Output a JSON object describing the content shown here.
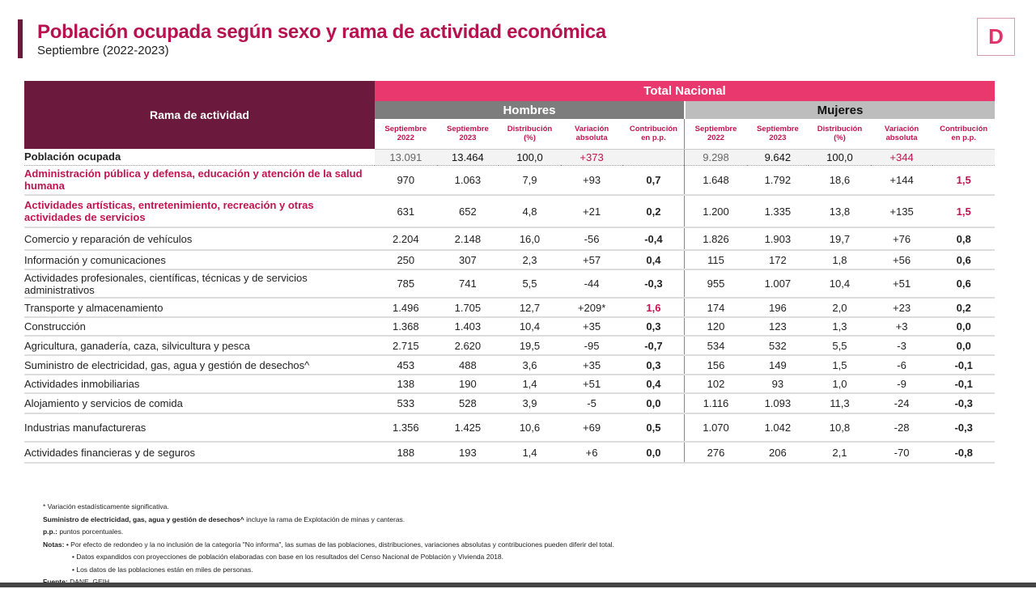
{
  "header": {
    "title": "Población ocupada según sexo y rama de actividad económica",
    "subtitle": "Septiembre (2022-2023)",
    "logo_letter": "D"
  },
  "table": {
    "rama_header": "Rama de actividad",
    "total_header": "Total Nacional",
    "hombres": "Hombres",
    "mujeres": "Mujeres",
    "columns": [
      "Septiembre 2022",
      "Septiembre 2023",
      "Distribución (%)",
      "Variación absoluta",
      "Contribución en p.p."
    ],
    "total_row": {
      "label": "Población ocupada",
      "hombres": [
        "13.091",
        "13.464",
        "100,0",
        "+373",
        ""
      ],
      "mujeres": [
        "9.298",
        "9.642",
        "100,0",
        "+344",
        ""
      ]
    },
    "rows": [
      {
        "label": "Administración pública y defensa, educación y atención de la salud humana",
        "highlight": true,
        "hombres": [
          "970",
          "1.063",
          "7,9",
          "+93",
          "0,7"
        ],
        "mujeres": [
          "1.648",
          "1.792",
          "18,6",
          "+144",
          "1,5"
        ],
        "pink_h": false,
        "pink_m": true
      },
      {
        "label": "Actividades artísticas, entretenimiento, recreación y otras actividades de servicios",
        "highlight": true,
        "hombres": [
          "631",
          "652",
          "4,8",
          "+21",
          "0,2"
        ],
        "mujeres": [
          "1.200",
          "1.335",
          "13,8",
          "+135",
          "1,5"
        ],
        "pink_h": false,
        "pink_m": true
      },
      {
        "label": "Comercio y reparación de vehículos",
        "hombres": [
          "2.204",
          "2.148",
          "16,0",
          "-56",
          "-0,4"
        ],
        "mujeres": [
          "1.826",
          "1.903",
          "19,7",
          "+76",
          "0,8"
        ]
      },
      {
        "label": "Información y comunicaciones",
        "hombres": [
          "250",
          "307",
          "2,3",
          "+57",
          "0,4"
        ],
        "mujeres": [
          "115",
          "172",
          "1,8",
          "+56",
          "0,6"
        ]
      },
      {
        "label": "Actividades profesionales, científicas, técnicas y de servicios administrativos",
        "hombres": [
          "785",
          "741",
          "5,5",
          "-44",
          "-0,3"
        ],
        "mujeres": [
          "955",
          "1.007",
          "10,4",
          "+51",
          "0,6"
        ]
      },
      {
        "label": "Transporte y almacenamiento",
        "hombres": [
          "1.496",
          "1.705",
          "12,7",
          "+209*",
          "1,6"
        ],
        "mujeres": [
          "174",
          "196",
          "2,0",
          "+23",
          "0,2"
        ],
        "pink_h": true
      },
      {
        "label": "Construcción",
        "hombres": [
          "1.368",
          "1.403",
          "10,4",
          "+35",
          "0,3"
        ],
        "mujeres": [
          "120",
          "123",
          "1,3",
          "+3",
          "0,0"
        ]
      },
      {
        "label": "Agricultura, ganadería, caza, silvicultura y pesca",
        "hombres": [
          "2.715",
          "2.620",
          "19,5",
          "-95",
          "-0,7"
        ],
        "mujeres": [
          "534",
          "532",
          "5,5",
          "-3",
          "0,0"
        ]
      },
      {
        "label": "Suministro de electricidad, gas, agua y gestión de desechos^",
        "hombres": [
          "453",
          "488",
          "3,6",
          "+35",
          "0,3"
        ],
        "mujeres": [
          "156",
          "149",
          "1,5",
          "-6",
          "-0,1"
        ]
      },
      {
        "label": "Actividades inmobiliarias",
        "hombres": [
          "138",
          "190",
          "1,4",
          "+51",
          "0,4"
        ],
        "mujeres": [
          "102",
          "93",
          "1,0",
          "-9",
          "-0,1"
        ]
      },
      {
        "label": "Alojamiento y servicios de comida",
        "hombres": [
          "533",
          "528",
          "3,9",
          "-5",
          "0,0"
        ],
        "mujeres": [
          "1.116",
          "1.093",
          "11,3",
          "-24",
          "-0,3"
        ]
      },
      {
        "label": "Industrias manufactureras",
        "hombres": [
          "1.356",
          "1.425",
          "10,6",
          "+69",
          "0,5"
        ],
        "mujeres": [
          "1.070",
          "1.042",
          "10,8",
          "-28",
          "-0,3"
        ]
      },
      {
        "label": "Actividades financieras y de seguros",
        "hombres": [
          "188",
          "193",
          "1,4",
          "+6",
          "0,0"
        ],
        "mujeres": [
          "276",
          "206",
          "2,1",
          "-70",
          "-0,8"
        ]
      }
    ]
  },
  "notes": {
    "significance": "* Variación estadísticamente significativa.",
    "suministro_bold": "Suministro de electricidad, gas, agua y gestión de desechos^",
    "suministro_text": " incluye la rama de Explotación de minas y canteras.",
    "pp_bold": "p.p.:",
    "pp_text": " puntos porcentuales.",
    "notas_bold": "Notas:",
    "nota1": " • Por efecto de redondeo y la no inclusión de la categoría \"No informa\", las sumas de las poblaciones, distribuciones, variaciones absolutas y contribuciones pueden diferir del total.",
    "nota2": "• Datos expandidos con proyecciones de población elaboradas con base en los resultados del Censo Nacional de Población y Vivienda 2018.",
    "nota3": "• Los datos de las poblaciones están en miles de personas.",
    "fuente_bold": "Fuente:",
    "fuente_text": " DANE, GEIH."
  },
  "colors": {
    "brand": "#6b1a3e",
    "accent": "#e8386e",
    "title": "#b5124f"
  }
}
